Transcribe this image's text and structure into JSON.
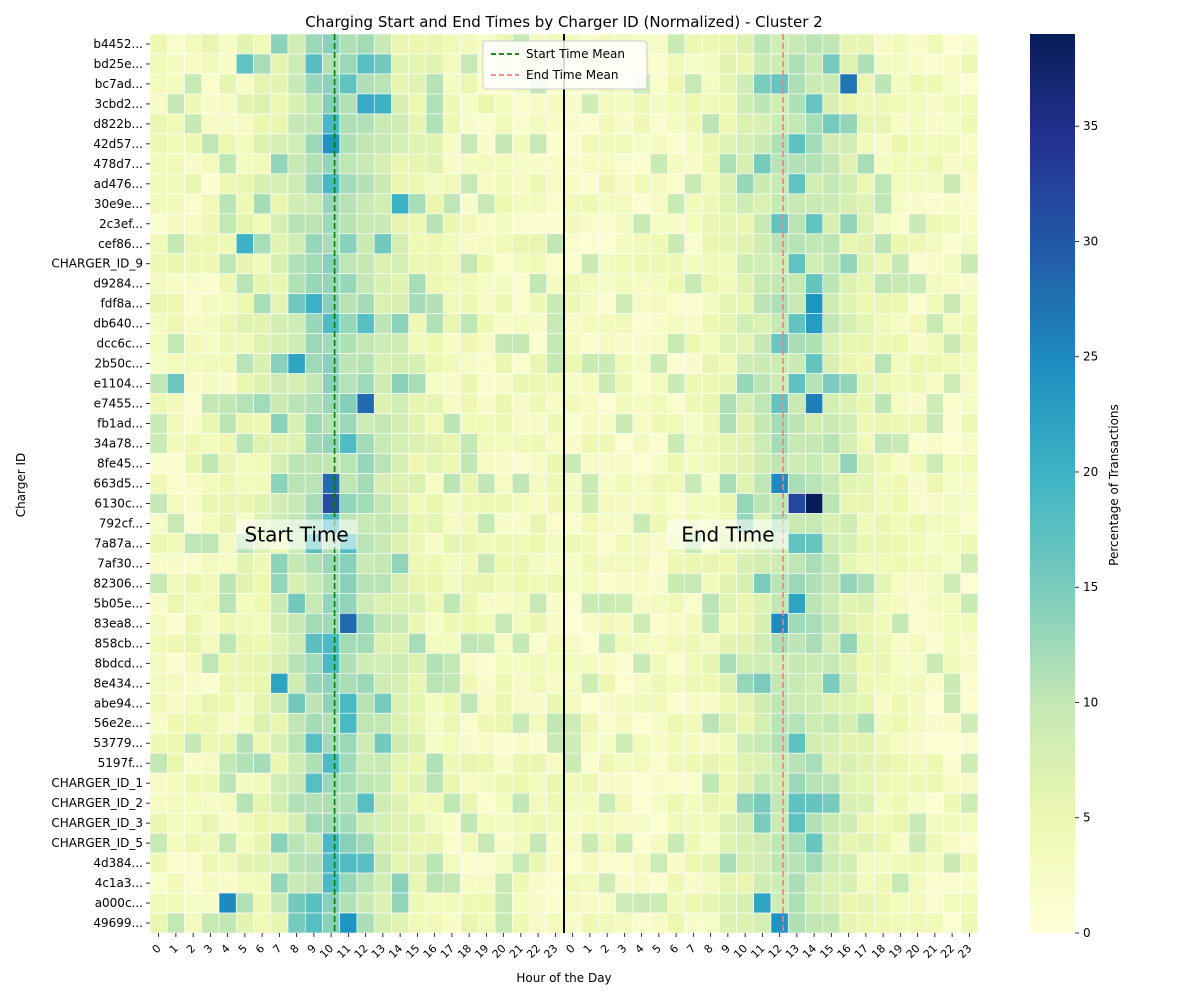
{
  "chart_data": {
    "type": "heatmap",
    "title": "Charging Start and End Times by Charger ID (Normalized) - Cluster 2",
    "xlabel": "Hour of the Day",
    "ylabel": "Charger ID",
    "colorbar_label": "Percentage of Transactions",
    "colorbar_ticks": [
      0,
      5,
      10,
      15,
      20,
      25,
      30,
      35
    ],
    "value_range": [
      0,
      39
    ],
    "colormap": [
      "#ffffd9",
      "#edf8b1",
      "#c7e9b4",
      "#7fcdbb",
      "#41b6c4",
      "#1d91c0",
      "#225ea8",
      "#253494",
      "#081d58"
    ],
    "start_hours": [
      "0",
      "1",
      "2",
      "3",
      "4",
      "5",
      "6",
      "7",
      "8",
      "9",
      "10",
      "11",
      "12",
      "13",
      "14",
      "15",
      "16",
      "17",
      "18",
      "19",
      "20",
      "21",
      "22",
      "23"
    ],
    "end_hours": [
      "0",
      "1",
      "2",
      "3",
      "4",
      "5",
      "6",
      "7",
      "8",
      "9",
      "10",
      "11",
      "12",
      "13",
      "14",
      "15",
      "16",
      "17",
      "18",
      "19",
      "20",
      "21",
      "22",
      "23"
    ],
    "rows": [
      "b4452...",
      "bd25e...",
      "bc7ad...",
      "3cbd2...",
      "d822b...",
      "42d57...",
      "478d7...",
      "ad476...",
      "30e9e...",
      "2c3ef...",
      "cef86...",
      "CHARGER_ID_9",
      "d9284...",
      "fdf8a...",
      "db640...",
      "dcc6c...",
      "2b50c...",
      "e1104...",
      "e7455...",
      "fb1ad...",
      "34a78...",
      "8fe45...",
      "663d5...",
      "6130c...",
      "792cf...",
      "7a87a...",
      "7af30...",
      "82306...",
      "5b05e...",
      "83ea8...",
      "858cb...",
      "8bdcd...",
      "8e434...",
      "abe94...",
      "56e2e...",
      "53779...",
      "5197f...",
      "CHARGER_ID_1",
      "CHARGER_ID_2",
      "CHARGER_ID_3",
      "CHARGER_ID_5",
      "4d384...",
      "4c1a3...",
      "a000c...",
      "49699..."
    ],
    "start_mean_hour": 10.7,
    "end_mean_hour": 12.7,
    "highlights": [
      {
        "row": "b4452...",
        "section": "start",
        "hour": 10,
        "value": 14
      },
      {
        "row": "bd25e...",
        "section": "start",
        "hour": 5,
        "value": 17
      },
      {
        "row": "bc7ad...",
        "section": "start",
        "hour": 11,
        "value": 17
      },
      {
        "row": "bc7ad...",
        "section": "end",
        "hour": 16,
        "value": 27
      },
      {
        "row": "3cbd2...",
        "section": "start",
        "hour": 12,
        "value": 21
      },
      {
        "row": "3cbd2...",
        "section": "start",
        "hour": 13,
        "value": 20
      },
      {
        "row": "42d57...",
        "section": "start",
        "hour": 10,
        "value": 24
      },
      {
        "row": "30e9e...",
        "section": "start",
        "hour": 14,
        "value": 20
      },
      {
        "row": "cef86...",
        "section": "start",
        "hour": 5,
        "value": 20
      },
      {
        "row": "fdf8a...",
        "section": "start",
        "hour": 9,
        "value": 20
      },
      {
        "row": "fdf8a...",
        "section": "end",
        "hour": 14,
        "value": 24
      },
      {
        "row": "db640...",
        "section": "end",
        "hour": 14,
        "value": 23
      },
      {
        "row": "2b50c...",
        "section": "start",
        "hour": 8,
        "value": 22
      },
      {
        "row": "e1104...",
        "section": "start",
        "hour": 1,
        "value": 16
      },
      {
        "row": "e7455...",
        "section": "start",
        "hour": 12,
        "value": 28
      },
      {
        "row": "e7455...",
        "section": "end",
        "hour": 14,
        "value": 26
      },
      {
        "row": "663d5...",
        "section": "start",
        "hour": 10,
        "value": 28
      },
      {
        "row": "663d5...",
        "section": "end",
        "hour": 12,
        "value": 25
      },
      {
        "row": "6130c...",
        "section": "start",
        "hour": 10,
        "value": 31
      },
      {
        "row": "6130c...",
        "section": "end",
        "hour": 13,
        "value": 32
      },
      {
        "row": "6130c...",
        "section": "end",
        "hour": 14,
        "value": 39
      },
      {
        "row": "8e434...",
        "section": "start",
        "hour": 7,
        "value": 22
      },
      {
        "row": "83ea8...",
        "section": "start",
        "hour": 11,
        "value": 28
      },
      {
        "row": "83ea8...",
        "section": "end",
        "hour": 12,
        "value": 25
      },
      {
        "row": "5b05e...",
        "section": "end",
        "hour": 13,
        "value": 22
      },
      {
        "row": "a000c...",
        "section": "start",
        "hour": 4,
        "value": 25
      },
      {
        "row": "a000c...",
        "section": "end",
        "hour": 11,
        "value": 22
      },
      {
        "row": "49699...",
        "section": "start",
        "hour": 11,
        "value": 24
      },
      {
        "row": "49699...",
        "section": "end",
        "hour": 12,
        "value": 24
      }
    ],
    "annotations": [
      "Start Time",
      "End Time"
    ],
    "legend": {
      "placement": "top-center",
      "entries": [
        {
          "label": "Start Time Mean",
          "color": "#008000",
          "style": "dashed"
        },
        {
          "label": "End Time Mean",
          "color": "#f08080",
          "style": "dashed"
        }
      ]
    }
  }
}
